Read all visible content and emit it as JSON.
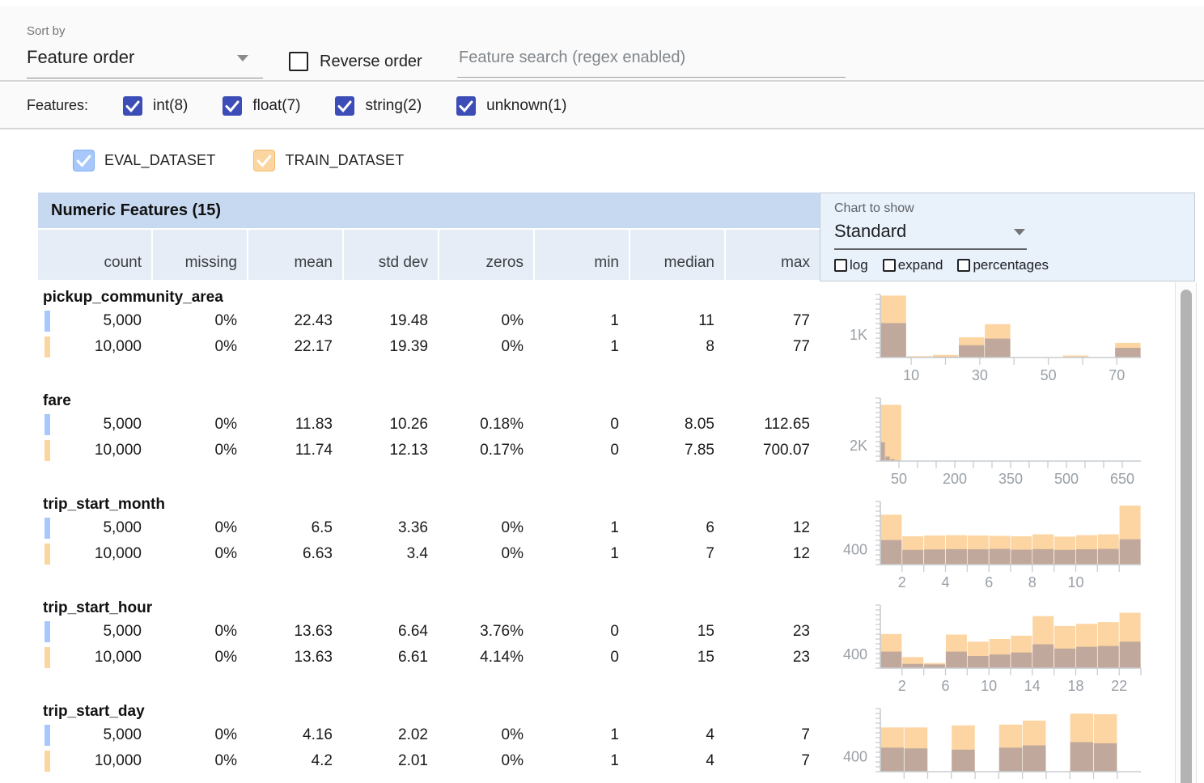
{
  "colors": {
    "accent_indigo": "#3d4db7",
    "eval_blue": "#a8c7fa",
    "eval_blue_border": "#7fadf5",
    "train_orange": "#fbd6a0",
    "train_orange_border": "#f2b96e",
    "chart_train": "#fcd5a2",
    "chart_overlap": "#c0a99c",
    "axis": "#c9cdd1",
    "axis_label": "#9aa0a6",
    "header_blue": "#c7d9f0",
    "subheader_blue": "#e7edf6",
    "panel_blue": "#e9f1fb"
  },
  "toolbar": {
    "sort_by_label": "Sort by",
    "sort_value": "Feature order",
    "reverse_label": "Reverse order",
    "search_placeholder": "Feature search (regex enabled)"
  },
  "features_filter": {
    "label": "Features:",
    "types": [
      {
        "label": "int(8)",
        "checked": true
      },
      {
        "label": "float(7)",
        "checked": true
      },
      {
        "label": "string(2)",
        "checked": true
      },
      {
        "label": "unknown(1)",
        "checked": true
      }
    ]
  },
  "datasets": [
    {
      "name": "EVAL_DATASET",
      "checked": true,
      "fill": "#a8c7fa",
      "border": "#7fadf5"
    },
    {
      "name": "TRAIN_DATASET",
      "checked": true,
      "fill": "#fbd6a0",
      "border": "#f2b96e"
    }
  ],
  "table": {
    "title": "Numeric Features (15)",
    "columns": [
      "count",
      "missing",
      "mean",
      "std dev",
      "zeros",
      "min",
      "median",
      "max"
    ]
  },
  "chart_controls": {
    "label": "Chart to show",
    "selected": "Standard",
    "options": [
      {
        "label": "log",
        "checked": false
      },
      {
        "label": "expand",
        "checked": false
      },
      {
        "label": "percentages",
        "checked": false
      }
    ]
  },
  "features": [
    {
      "name": "pickup_community_area",
      "rows": [
        {
          "dataset": "EVAL_DATASET",
          "values": [
            "5,000",
            "0%",
            "22.43",
            "19.48",
            "0%",
            "1",
            "11",
            "77"
          ]
        },
        {
          "dataset": "TRAIN_DATASET",
          "values": [
            "10,000",
            "0%",
            "22.17",
            "19.39",
            "0%",
            "1",
            "8",
            "77"
          ]
        }
      ],
      "chart": {
        "type": "histogram",
        "ymax": 2800,
        "ytick": {
          "value": 1000,
          "label": "1K"
        },
        "xmin": 1,
        "xmax": 77,
        "xticks": [
          {
            "v": 10,
            "label": "10"
          },
          {
            "v": 20,
            "label": ""
          },
          {
            "v": 30,
            "label": "30"
          },
          {
            "v": 40,
            "label": ""
          },
          {
            "v": 50,
            "label": "50"
          },
          {
            "v": 60,
            "label": ""
          },
          {
            "v": 70,
            "label": "70"
          }
        ],
        "bars": [
          {
            "x0": 1,
            "x1": 8.6,
            "train": 2750,
            "overlap": 1530
          },
          {
            "x0": 8.6,
            "x1": 16.2,
            "train": 60,
            "overlap": 20
          },
          {
            "x0": 16.2,
            "x1": 23.8,
            "train": 120,
            "overlap": 40
          },
          {
            "x0": 23.8,
            "x1": 31.4,
            "train": 900,
            "overlap": 545
          },
          {
            "x0": 31.4,
            "x1": 39,
            "train": 1480,
            "overlap": 840
          },
          {
            "x0": 39,
            "x1": 46.6,
            "train": 25,
            "overlap": 8
          },
          {
            "x0": 46.6,
            "x1": 54.2,
            "train": 20,
            "overlap": 6
          },
          {
            "x0": 54.2,
            "x1": 61.8,
            "train": 90,
            "overlap": 30
          },
          {
            "x0": 61.8,
            "x1": 69.4,
            "train": 20,
            "overlap": 6
          },
          {
            "x0": 69.4,
            "x1": 77,
            "train": 650,
            "overlap": 430
          }
        ]
      }
    },
    {
      "name": "fare",
      "rows": [
        {
          "dataset": "EVAL_DATASET",
          "values": [
            "5,000",
            "0%",
            "11.83",
            "10.26",
            "0.18%",
            "0",
            "8.05",
            "112.65"
          ]
        },
        {
          "dataset": "TRAIN_DATASET",
          "values": [
            "10,000",
            "0%",
            "11.74",
            "12.13",
            "0.17%",
            "0",
            "7.85",
            "700.07"
          ]
        }
      ],
      "chart": {
        "type": "histogram",
        "ymax": 8300,
        "ytick": {
          "value": 2000,
          "label": "2K"
        },
        "xmin": 0,
        "xmax": 700,
        "xticks": [
          {
            "v": 50,
            "label": "50"
          },
          {
            "v": 100,
            "label": ""
          },
          {
            "v": 150,
            "label": ""
          },
          {
            "v": 200,
            "label": "200"
          },
          {
            "v": 250,
            "label": ""
          },
          {
            "v": 300,
            "label": ""
          },
          {
            "v": 350,
            "label": "350"
          },
          {
            "v": 400,
            "label": ""
          },
          {
            "v": 450,
            "label": ""
          },
          {
            "v": 500,
            "label": "500"
          },
          {
            "v": 550,
            "label": ""
          },
          {
            "v": 600,
            "label": ""
          },
          {
            "v": 650,
            "label": "650"
          }
        ],
        "bars": [
          {
            "x0": 0,
            "x1": 57,
            "train": 7400,
            "overlap": 0
          },
          {
            "x0": 0,
            "x1": 13,
            "train": 0,
            "overlap": 2480
          },
          {
            "x0": 13,
            "x1": 26,
            "train": 0,
            "overlap": 600
          },
          {
            "x0": 26,
            "x1": 39,
            "train": 0,
            "overlap": 260
          },
          {
            "x0": 39,
            "x1": 52,
            "train": 0,
            "overlap": 110
          }
        ]
      }
    },
    {
      "name": "trip_start_month",
      "rows": [
        {
          "dataset": "EVAL_DATASET",
          "values": [
            "5,000",
            "0%",
            "6.5",
            "3.36",
            "0%",
            "1",
            "6",
            "12"
          ]
        },
        {
          "dataset": "TRAIN_DATASET",
          "values": [
            "10,000",
            "0%",
            "6.63",
            "3.4",
            "0%",
            "1",
            "7",
            "12"
          ]
        }
      ],
      "chart": {
        "type": "histogram",
        "ymax": 1670,
        "ytick": {
          "value": 400,
          "label": "400"
        },
        "xmin": 1,
        "xmax": 13,
        "xticks": [
          {
            "v": 2,
            "label": "2"
          },
          {
            "v": 3,
            "label": ""
          },
          {
            "v": 4,
            "label": "4"
          },
          {
            "v": 5,
            "label": ""
          },
          {
            "v": 6,
            "label": "6"
          },
          {
            "v": 7,
            "label": ""
          },
          {
            "v": 8,
            "label": "8"
          },
          {
            "v": 9,
            "label": ""
          },
          {
            "v": 10,
            "label": "10"
          },
          {
            "v": 11,
            "label": ""
          },
          {
            "v": 12,
            "label": ""
          }
        ],
        "bars": [
          {
            "x0": 1,
            "x1": 2,
            "train": 1320,
            "overlap": 650
          },
          {
            "x0": 2,
            "x1": 3,
            "train": 750,
            "overlap": 390
          },
          {
            "x0": 3,
            "x1": 4,
            "train": 770,
            "overlap": 400
          },
          {
            "x0": 4,
            "x1": 5,
            "train": 780,
            "overlap": 410
          },
          {
            "x0": 5,
            "x1": 6,
            "train": 770,
            "overlap": 405
          },
          {
            "x0": 6,
            "x1": 7,
            "train": 760,
            "overlap": 415
          },
          {
            "x0": 7,
            "x1": 8,
            "train": 750,
            "overlap": 395
          },
          {
            "x0": 8,
            "x1": 9,
            "train": 800,
            "overlap": 410
          },
          {
            "x0": 9,
            "x1": 10,
            "train": 740,
            "overlap": 390
          },
          {
            "x0": 10,
            "x1": 11,
            "train": 780,
            "overlap": 405
          },
          {
            "x0": 11,
            "x1": 12,
            "train": 800,
            "overlap": 415
          },
          {
            "x0": 12,
            "x1": 13,
            "train": 1560,
            "overlap": 670
          }
        ]
      }
    },
    {
      "name": "trip_start_hour",
      "rows": [
        {
          "dataset": "EVAL_DATASET",
          "values": [
            "5,000",
            "0%",
            "13.63",
            "6.64",
            "3.76%",
            "0",
            "15",
            "23"
          ]
        },
        {
          "dataset": "TRAIN_DATASET",
          "values": [
            "10,000",
            "0%",
            "13.63",
            "6.61",
            "4.14%",
            "0",
            "15",
            "23"
          ]
        }
      ],
      "chart": {
        "type": "histogram",
        "ymax": 1850,
        "ytick": {
          "value": 400,
          "label": "400"
        },
        "xmin": 0,
        "xmax": 24,
        "xticks": [
          {
            "v": 2,
            "label": "2"
          },
          {
            "v": 4,
            "label": ""
          },
          {
            "v": 6,
            "label": "6"
          },
          {
            "v": 8,
            "label": ""
          },
          {
            "v": 10,
            "label": "10"
          },
          {
            "v": 12,
            "label": ""
          },
          {
            "v": 14,
            "label": "14"
          },
          {
            "v": 16,
            "label": ""
          },
          {
            "v": 18,
            "label": "18"
          },
          {
            "v": 20,
            "label": ""
          },
          {
            "v": 22,
            "label": "22"
          },
          {
            "v": 24,
            "label": ""
          }
        ],
        "bars": [
          {
            "x0": 0,
            "x1": 2,
            "train": 1000,
            "overlap": 485
          },
          {
            "x0": 2,
            "x1": 4,
            "train": 325,
            "overlap": 125
          },
          {
            "x0": 4,
            "x1": 6,
            "train": 150,
            "overlap": 108
          },
          {
            "x0": 6,
            "x1": 8,
            "train": 985,
            "overlap": 485
          },
          {
            "x0": 8,
            "x1": 10,
            "train": 775,
            "overlap": 355
          },
          {
            "x0": 10,
            "x1": 12,
            "train": 855,
            "overlap": 400
          },
          {
            "x0": 12,
            "x1": 14,
            "train": 950,
            "overlap": 460
          },
          {
            "x0": 14,
            "x1": 16,
            "train": 1525,
            "overlap": 700
          },
          {
            "x0": 16,
            "x1": 18,
            "train": 1235,
            "overlap": 575
          },
          {
            "x0": 18,
            "x1": 20,
            "train": 1300,
            "overlap": 625
          },
          {
            "x0": 20,
            "x1": 22,
            "train": 1350,
            "overlap": 650
          },
          {
            "x0": 22,
            "x1": 24,
            "train": 1625,
            "overlap": 775
          }
        ]
      }
    },
    {
      "name": "trip_start_day",
      "rows": [
        {
          "dataset": "EVAL_DATASET",
          "values": [
            "5,000",
            "0%",
            "4.16",
            "2.02",
            "0%",
            "1",
            "4",
            "7"
          ]
        },
        {
          "dataset": "TRAIN_DATASET",
          "values": [
            "10,000",
            "0%",
            "4.2",
            "2.01",
            "0%",
            "1",
            "4",
            "7"
          ]
        }
      ],
      "chart": {
        "type": "histogram",
        "ymax": 1690,
        "ytick": {
          "value": 400,
          "label": "400"
        },
        "xmin": 1,
        "xmax": 7.6,
        "xticks": [
          {
            "v": 1.6,
            "label": ""
          },
          {
            "v": 2.2,
            "label": ""
          },
          {
            "v": 2.8,
            "label": ""
          },
          {
            "v": 3.4,
            "label": ""
          },
          {
            "v": 4,
            "label": ""
          },
          {
            "v": 4.6,
            "label": ""
          },
          {
            "v": 5.2,
            "label": ""
          },
          {
            "v": 5.8,
            "label": ""
          },
          {
            "v": 6.4,
            "label": ""
          },
          {
            "v": 7,
            "label": ""
          }
        ],
        "bars": [
          {
            "x0": 1,
            "x1": 1.6,
            "train": 1185,
            "overlap": 645
          },
          {
            "x0": 1.6,
            "x1": 2.2,
            "train": 1185,
            "overlap": 625
          },
          {
            "x0": 2.8,
            "x1": 3.4,
            "train": 1240,
            "overlap": 590
          },
          {
            "x0": 4,
            "x1": 4.6,
            "train": 1260,
            "overlap": 645
          },
          {
            "x0": 4.6,
            "x1": 5.2,
            "train": 1370,
            "overlap": 705
          },
          {
            "x0": 5.8,
            "x1": 6.4,
            "train": 1555,
            "overlap": 790
          },
          {
            "x0": 6.4,
            "x1": 7,
            "train": 1540,
            "overlap": 760
          }
        ]
      }
    }
  ]
}
